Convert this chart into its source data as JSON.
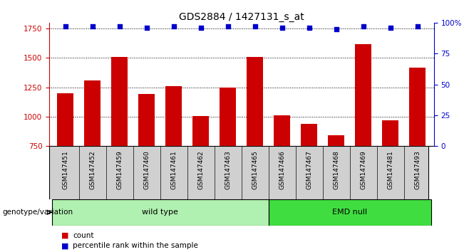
{
  "title": "GDS2884 / 1427131_s_at",
  "samples": [
    "GSM147451",
    "GSM147452",
    "GSM147459",
    "GSM147460",
    "GSM147461",
    "GSM147462",
    "GSM147463",
    "GSM147465",
    "GSM147466",
    "GSM147467",
    "GSM147468",
    "GSM147469",
    "GSM147481",
    "GSM147493"
  ],
  "counts": [
    1200,
    1310,
    1510,
    1195,
    1260,
    1005,
    1250,
    1510,
    1010,
    940,
    840,
    1620,
    970,
    1415
  ],
  "percentile_ranks": [
    97,
    97,
    97,
    96,
    97,
    96,
    97,
    97,
    96,
    96,
    95,
    97,
    96,
    97
  ],
  "ylim_left": [
    750,
    1800
  ],
  "ylim_right": [
    0,
    100
  ],
  "yticks_left": [
    750,
    1000,
    1250,
    1500,
    1750
  ],
  "yticks_right": [
    0,
    25,
    50,
    75,
    100
  ],
  "bar_color": "#cc0000",
  "dot_color": "#0000cc",
  "wild_type_label": "wild type",
  "emd_null_label": "EMD null",
  "genotype_label": "genotype/variation",
  "legend_count_label": "count",
  "legend_percentile_label": "percentile rank within the sample",
  "left_axis_color": "#cc0000",
  "right_axis_color": "#0000cc",
  "panel_bg": "#d0d0d0",
  "wt_bg": "#b0f0b0",
  "emd_bg": "#40dd40",
  "n_wild_type": 8,
  "n_emd_null": 6
}
